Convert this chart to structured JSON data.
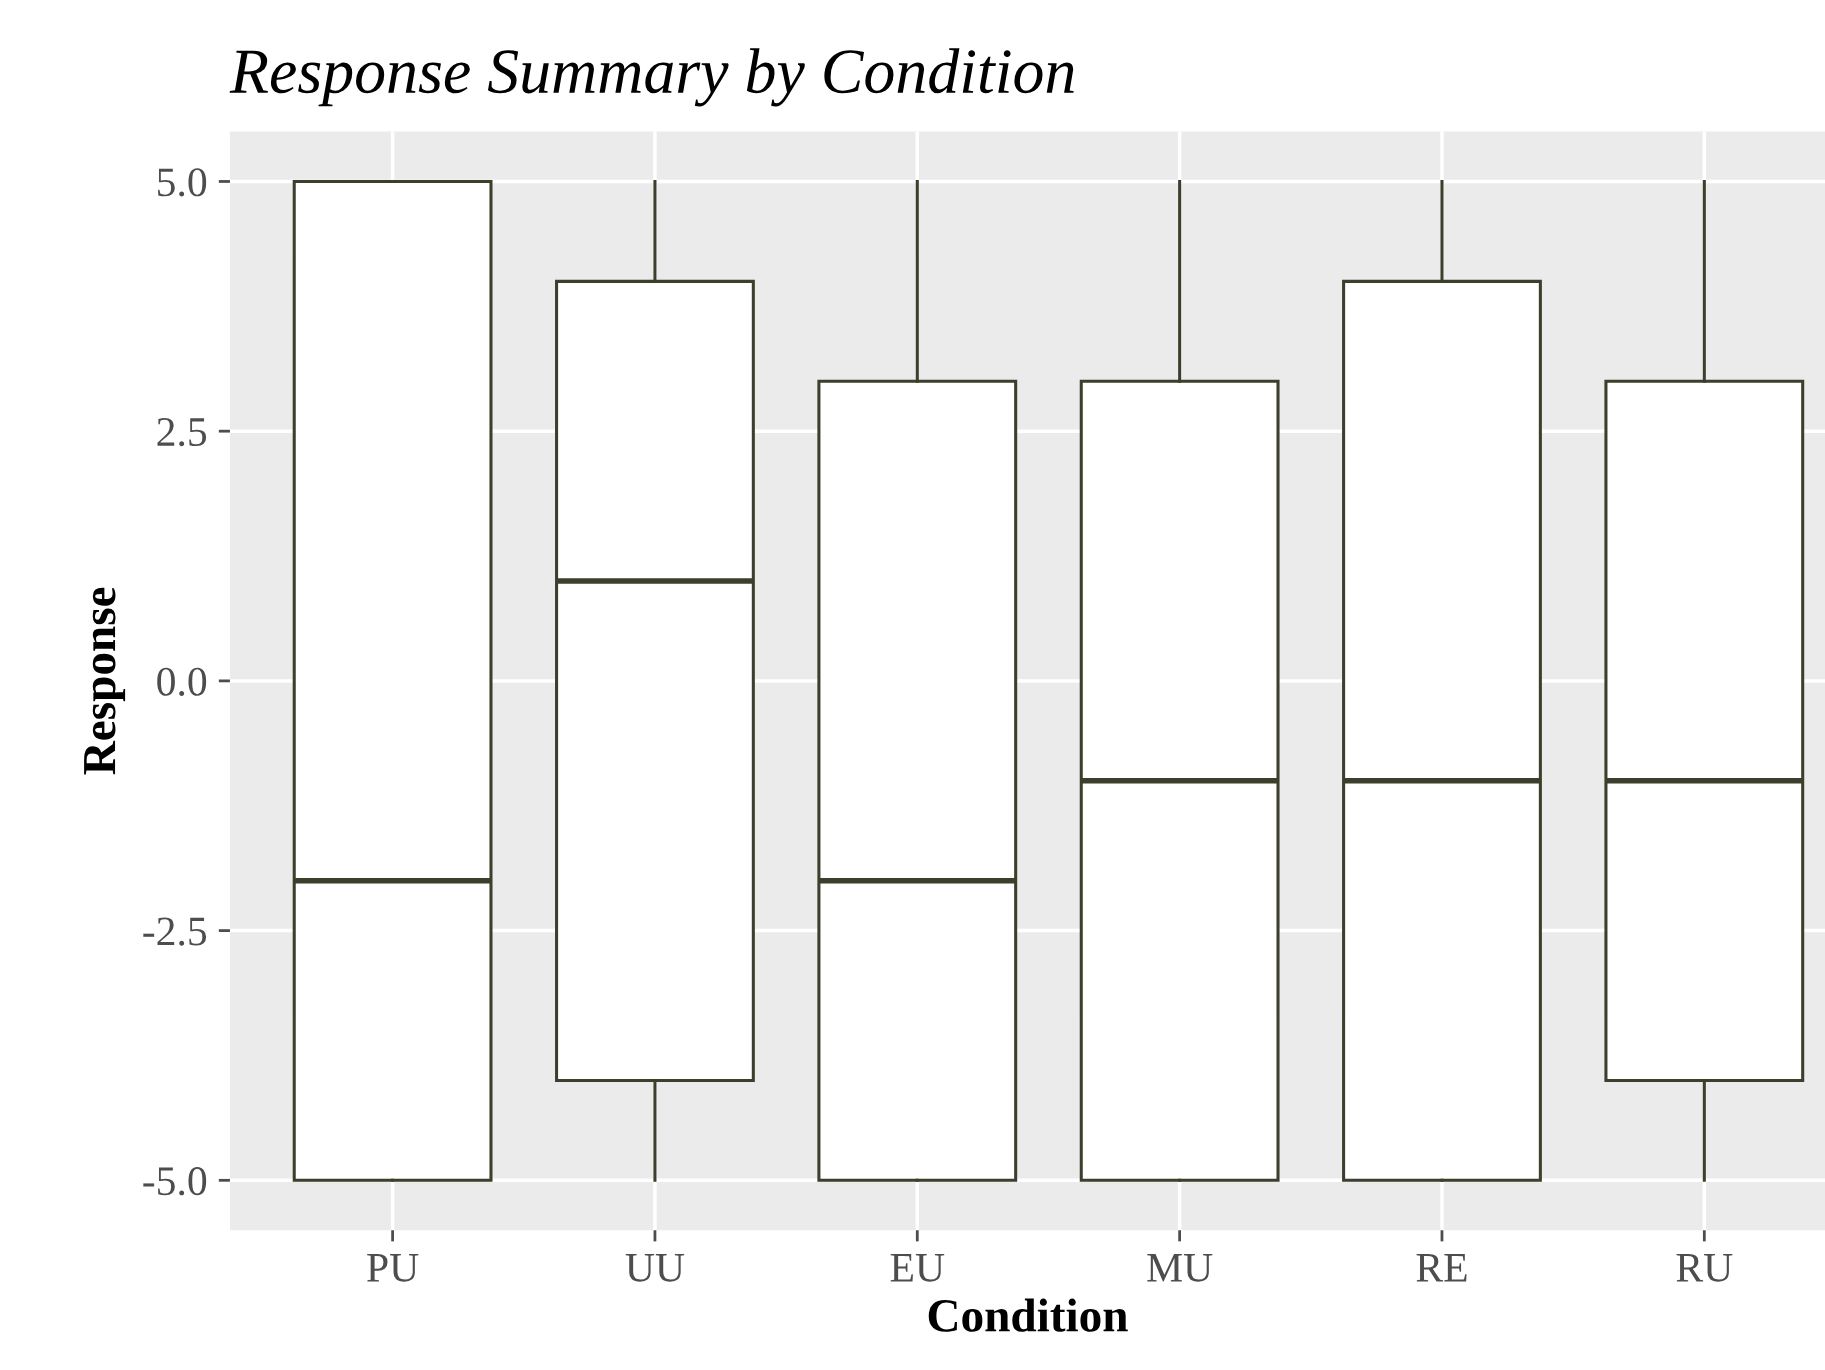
{
  "chart_data": {
    "type": "box",
    "title": "Response Summary by Condition",
    "xlabel": "Condition",
    "ylabel": "Response",
    "categories": [
      "PU",
      "UU",
      "EU",
      "MU",
      "RE",
      "RU"
    ],
    "boxes": [
      {
        "low": -5,
        "q1": -5,
        "median": -2,
        "q3": 5,
        "high": 5
      },
      {
        "low": -5,
        "q1": -4,
        "median": 1,
        "q3": 4,
        "high": 5
      },
      {
        "low": -5,
        "q1": -5,
        "median": -2,
        "q3": 3,
        "high": 5
      },
      {
        "low": -5,
        "q1": -5,
        "median": -1,
        "q3": 3,
        "high": 5
      },
      {
        "low": -5,
        "q1": -5,
        "median": -1,
        "q3": 4,
        "high": 5
      },
      {
        "low": -5,
        "q1": -4,
        "median": -1,
        "q3": 3,
        "high": 5
      }
    ],
    "color": "#3b3f2b",
    "ylim": [
      -5.5,
      5.5
    ],
    "yticks": [
      {
        "value": -5,
        "label": "-5.0"
      },
      {
        "value": -2.5,
        "label": "-2.5"
      },
      {
        "value": 0,
        "label": "0.0"
      },
      {
        "value": 2.5,
        "label": "2.5"
      },
      {
        "value": 5,
        "label": "5.0"
      }
    ],
    "grid": true,
    "legend": false
  }
}
